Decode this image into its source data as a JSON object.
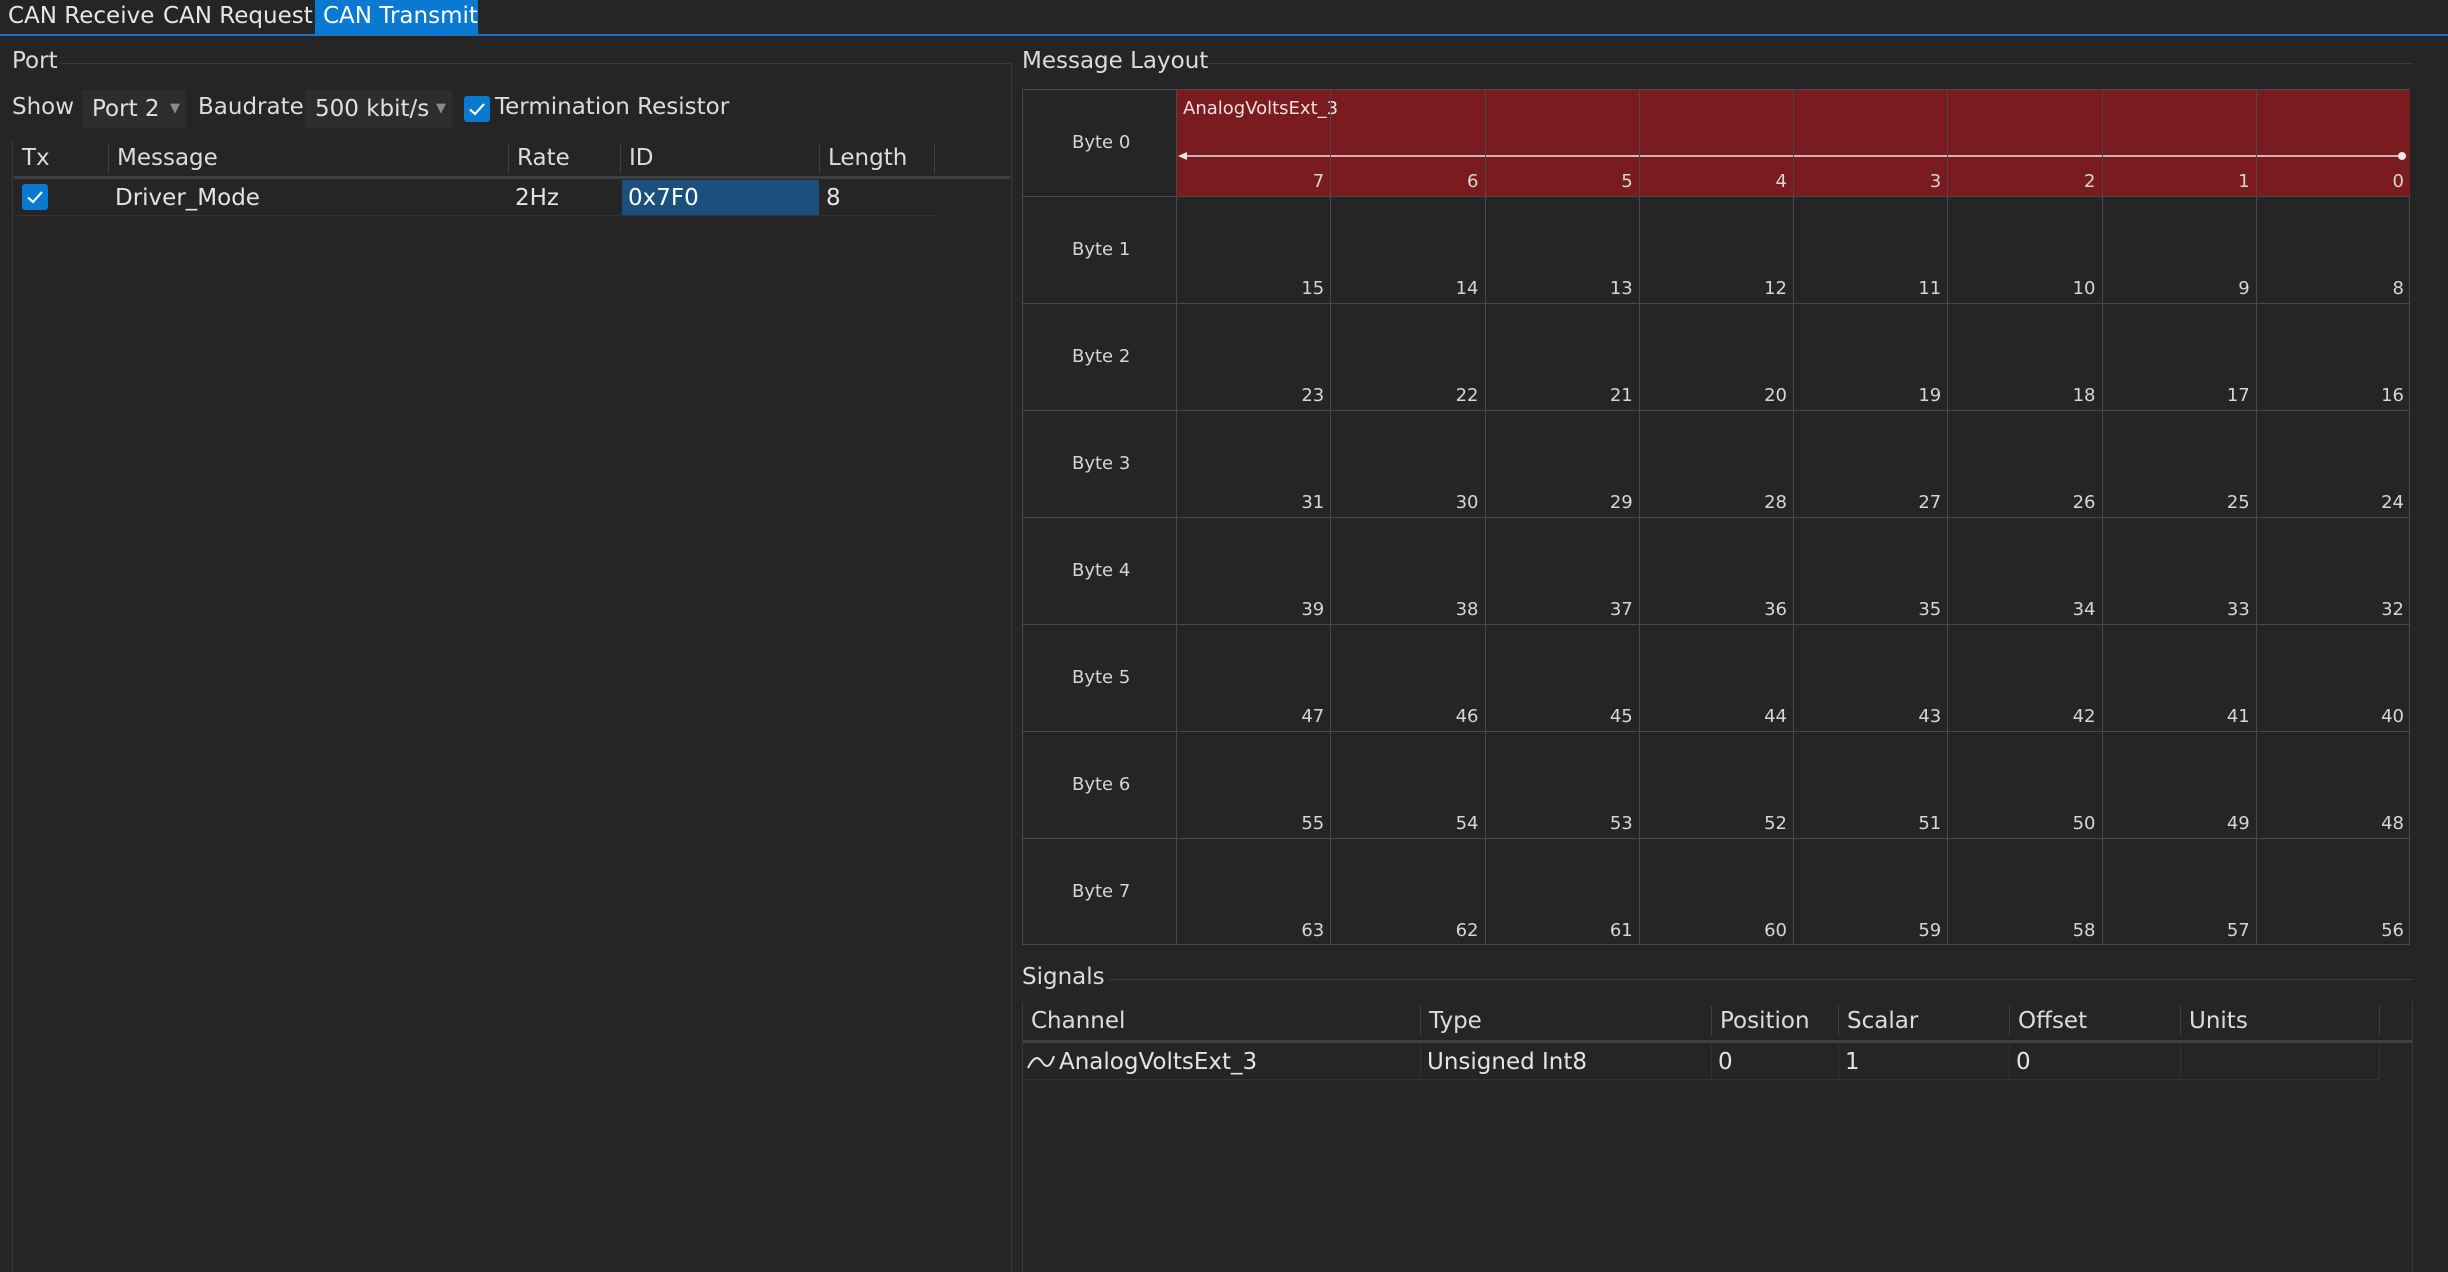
{
  "tabs": [
    {
      "label": "CAN Receive",
      "active": false
    },
    {
      "label": "CAN Request",
      "active": false
    },
    {
      "label": "CAN Transmit",
      "active": true
    }
  ],
  "port_group": {
    "title": "Port",
    "show_label": "Show",
    "port_value": "Port 2",
    "baudrate_label": "Baudrate",
    "baudrate_value": "500 kbit/s",
    "termination_label": "Termination Resistor",
    "termination_checked": true
  },
  "messages_table": {
    "columns": [
      "Tx",
      "Message",
      "Rate",
      "ID",
      "Length"
    ],
    "rows": [
      {
        "tx": true,
        "message": "Driver_Mode",
        "rate": "2Hz",
        "id": "0x7F0",
        "length": "8"
      }
    ]
  },
  "layout_group": {
    "title": "Message Layout",
    "rows": [
      {
        "label": "Byte 0",
        "bits": [
          "7",
          "6",
          "5",
          "4",
          "3",
          "2",
          "1",
          "0"
        ]
      },
      {
        "label": "Byte 1",
        "bits": [
          "15",
          "14",
          "13",
          "12",
          "11",
          "10",
          "9",
          "8"
        ]
      },
      {
        "label": "Byte 2",
        "bits": [
          "23",
          "22",
          "21",
          "20",
          "19",
          "18",
          "17",
          "16"
        ]
      },
      {
        "label": "Byte 3",
        "bits": [
          "31",
          "30",
          "29",
          "28",
          "27",
          "26",
          "25",
          "24"
        ]
      },
      {
        "label": "Byte 4",
        "bits": [
          "39",
          "38",
          "37",
          "36",
          "35",
          "34",
          "33",
          "32"
        ]
      },
      {
        "label": "Byte 5",
        "bits": [
          "47",
          "46",
          "45",
          "44",
          "43",
          "42",
          "41",
          "40"
        ]
      },
      {
        "label": "Byte 6",
        "bits": [
          "55",
          "54",
          "53",
          "52",
          "51",
          "50",
          "49",
          "48"
        ]
      },
      {
        "label": "Byte 7",
        "bits": [
          "63",
          "62",
          "61",
          "60",
          "59",
          "58",
          "57",
          "56"
        ]
      }
    ],
    "signal": {
      "name": "AnalogVoltsExt_3",
      "color": "#7a1c1f"
    }
  },
  "signals_group": {
    "title": "Signals",
    "columns": [
      "Channel",
      "Type",
      "Position",
      "Scalar",
      "Offset",
      "Units"
    ],
    "rows": [
      {
        "icon": "signal-curve-icon",
        "channel": "AnalogVoltsExt_3",
        "type": "Unsigned Int8",
        "position": "0",
        "scalar": "1",
        "offset": "0",
        "units": ""
      }
    ]
  },
  "colors": {
    "accent": "#0a79d1",
    "background": "#252526",
    "signal": "#7a1c1f",
    "selection": "#1b4f7e"
  }
}
